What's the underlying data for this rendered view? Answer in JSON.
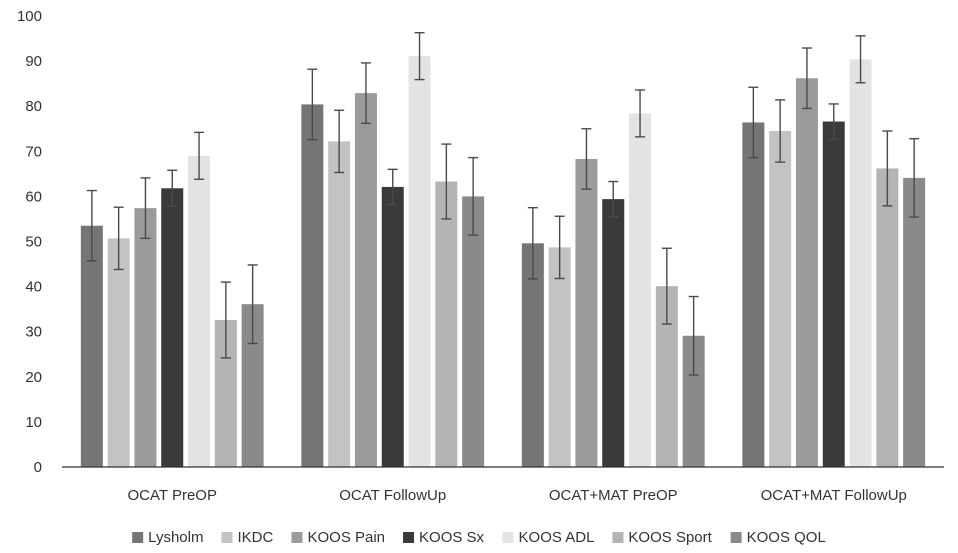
{
  "chart_data": {
    "type": "bar",
    "categories": [
      "OCAT PreOP",
      "OCAT FollowUp",
      "OCAT+MAT PreOP",
      "OCAT+MAT FollowUp"
    ],
    "series": [
      {
        "name": "Lysholm",
        "color": "#757575",
        "values": [
          53.5,
          80.4,
          49.6,
          76.4
        ],
        "errors": [
          7.8,
          7.8,
          7.9,
          7.8
        ]
      },
      {
        "name": "IKDC",
        "color": "#c3c3c3",
        "values": [
          50.7,
          72.2,
          48.7,
          74.5
        ],
        "errors": [
          6.9,
          6.9,
          6.9,
          6.9
        ]
      },
      {
        "name": "KOOS Pain",
        "color": "#9b9b9b",
        "values": [
          57.4,
          82.9,
          68.3,
          86.2
        ],
        "errors": [
          6.7,
          6.7,
          6.7,
          6.7
        ]
      },
      {
        "name": "KOOS Sx",
        "color": "#3a3a3a",
        "values": [
          61.8,
          62.1,
          59.4,
          76.6
        ],
        "errors": [
          4.0,
          3.9,
          3.9,
          3.9
        ]
      },
      {
        "name": "KOOS ADL",
        "color": "#e3e3e3",
        "values": [
          69.0,
          91.1,
          78.4,
          90.4
        ],
        "errors": [
          5.2,
          5.2,
          5.2,
          5.2
        ]
      },
      {
        "name": "KOOS Sport",
        "color": "#b4b4b4",
        "values": [
          32.6,
          63.3,
          40.1,
          66.2
        ],
        "errors": [
          8.4,
          8.3,
          8.4,
          8.3
        ]
      },
      {
        "name": "KOOS QOL",
        "color": "#8a8a8a",
        "values": [
          36.1,
          60.0,
          29.1,
          64.1
        ],
        "errors": [
          8.7,
          8.6,
          8.7,
          8.7
        ]
      }
    ],
    "ylim": [
      0,
      100
    ],
    "yticks": [
      0,
      10,
      20,
      30,
      40,
      50,
      60,
      70,
      80,
      90,
      100
    ],
    "grid": false,
    "legend_position": "bottom",
    "title": "",
    "xlabel": "",
    "ylabel": ""
  }
}
